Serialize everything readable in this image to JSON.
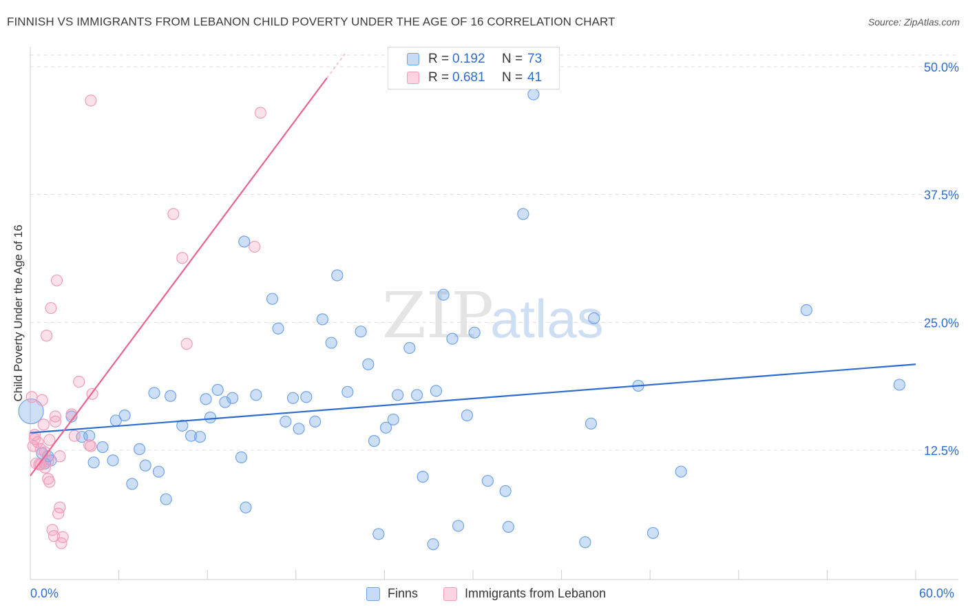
{
  "title": "FINNISH VS IMMIGRANTS FROM LEBANON CHILD POVERTY UNDER THE AGE OF 16 CORRELATION CHART",
  "source": "Source: ZipAtlas.com",
  "watermark": {
    "zip": "ZIP",
    "atlas": "atlas"
  },
  "legend": {
    "finns": {
      "r_label": "R =",
      "r_value": "0.192",
      "n_label": "N =",
      "n_value": "73"
    },
    "lebanon": {
      "r_label": "R =",
      "r_value": "0.681",
      "n_label": "N =",
      "n_value": "41"
    }
  },
  "chart_data": {
    "type": "scatter",
    "title": "FINNISH VS IMMIGRANTS FROM LEBANON CHILD POVERTY UNDER THE AGE OF 16 CORRELATION CHART",
    "xlabel": "",
    "ylabel": "Child Poverty Under the Age of 16",
    "xlim": [
      0,
      60
    ],
    "ylim": [
      0,
      52
    ],
    "x_tick_labels": [
      "0.0%",
      "60.0%"
    ],
    "y_tick_labels": [
      "12.5%",
      "25.0%",
      "37.5%",
      "50.0%"
    ],
    "y_ticks": [
      12.5,
      25.0,
      37.5,
      50.0
    ],
    "grid": true,
    "legend_position": "bottom",
    "colors": {
      "finns": "#6fa3e8",
      "finns_line": "#2d6ccf",
      "lebanon": "#f29bbb",
      "lebanon_line": "#e8648f",
      "text_blue": "#2d6ccf"
    },
    "series": [
      {
        "name": "Finns",
        "R": 0.192,
        "N": 73,
        "trend": {
          "x": [
            0,
            60
          ],
          "y": [
            14.2,
            20.9
          ]
        },
        "points": [
          [
            0.05,
            16.3
          ],
          [
            0.8,
            12.2
          ],
          [
            1.0,
            11.2
          ],
          [
            1.2,
            11.9
          ],
          [
            1.4,
            11.5
          ],
          [
            2.8,
            15.8
          ],
          [
            3.5,
            13.8
          ],
          [
            4.0,
            13.9
          ],
          [
            4.3,
            11.3
          ],
          [
            4.9,
            12.8
          ],
          [
            5.6,
            11.5
          ],
          [
            5.8,
            15.4
          ],
          [
            6.4,
            15.9
          ],
          [
            6.9,
            9.2
          ],
          [
            7.4,
            12.6
          ],
          [
            7.8,
            11.0
          ],
          [
            8.4,
            18.1
          ],
          [
            8.7,
            10.4
          ],
          [
            9.2,
            7.7
          ],
          [
            9.5,
            17.8
          ],
          [
            10.3,
            14.9
          ],
          [
            10.9,
            13.9
          ],
          [
            11.5,
            13.8
          ],
          [
            11.9,
            17.5
          ],
          [
            12.2,
            15.7
          ],
          [
            12.7,
            18.4
          ],
          [
            13.2,
            17.2
          ],
          [
            13.7,
            17.6
          ],
          [
            14.3,
            11.8
          ],
          [
            14.5,
            32.9
          ],
          [
            14.6,
            6.9
          ],
          [
            15.3,
            17.9
          ],
          [
            16.4,
            27.3
          ],
          [
            16.8,
            24.4
          ],
          [
            17.3,
            15.3
          ],
          [
            17.8,
            17.6
          ],
          [
            18.2,
            14.6
          ],
          [
            18.7,
            17.7
          ],
          [
            19.3,
            15.3
          ],
          [
            19.8,
            25.3
          ],
          [
            20.4,
            23.0
          ],
          [
            20.8,
            29.6
          ],
          [
            21.5,
            18.2
          ],
          [
            22.4,
            24.1
          ],
          [
            22.9,
            20.9
          ],
          [
            23.3,
            13.4
          ],
          [
            23.6,
            4.3
          ],
          [
            24.1,
            14.7
          ],
          [
            24.6,
            15.5
          ],
          [
            24.9,
            17.9
          ],
          [
            25.7,
            22.5
          ],
          [
            26.2,
            17.9
          ],
          [
            26.6,
            9.9
          ],
          [
            27.3,
            3.3
          ],
          [
            27.5,
            18.3
          ],
          [
            28.0,
            27.7
          ],
          [
            28.6,
            23.4
          ],
          [
            29.0,
            5.1
          ],
          [
            29.6,
            15.9
          ],
          [
            30.1,
            24.0
          ],
          [
            31.0,
            9.5
          ],
          [
            32.2,
            8.5
          ],
          [
            32.4,
            5.0
          ],
          [
            33.4,
            35.6
          ],
          [
            34.1,
            47.3
          ],
          [
            37.6,
            3.5
          ],
          [
            38.0,
            15.1
          ],
          [
            38.2,
            25.4
          ],
          [
            41.2,
            18.8
          ],
          [
            42.2,
            4.4
          ],
          [
            44.1,
            10.4
          ],
          [
            52.6,
            26.2
          ],
          [
            58.9,
            18.9
          ]
        ]
      },
      {
        "name": "Immigrants from Lebanon",
        "R": 0.681,
        "N": 41,
        "trend": {
          "x": [
            0,
            20.1
          ],
          "y": [
            10.0,
            48.9
          ]
        },
        "points": [
          [
            0.1,
            17.7
          ],
          [
            0.2,
            12.9
          ],
          [
            0.3,
            14.0
          ],
          [
            0.3,
            13.6
          ],
          [
            0.4,
            11.2
          ],
          [
            0.6,
            11.1
          ],
          [
            0.7,
            11.1
          ],
          [
            0.7,
            12.6
          ],
          [
            0.8,
            17.4
          ],
          [
            0.9,
            15.0
          ],
          [
            1.0,
            10.8
          ],
          [
            1.0,
            12.3
          ],
          [
            1.1,
            23.7
          ],
          [
            1.2,
            9.7
          ],
          [
            1.3,
            9.4
          ],
          [
            1.3,
            13.5
          ],
          [
            1.4,
            26.4
          ],
          [
            1.5,
            4.7
          ],
          [
            1.6,
            4.1
          ],
          [
            1.7,
            15.8
          ],
          [
            1.7,
            15.3
          ],
          [
            1.8,
            29.1
          ],
          [
            1.9,
            6.3
          ],
          [
            2.0,
            6.9
          ],
          [
            2.0,
            11.9
          ],
          [
            2.1,
            3.4
          ],
          [
            2.2,
            4.0
          ],
          [
            2.8,
            16.0
          ],
          [
            3.0,
            13.9
          ],
          [
            3.3,
            19.2
          ],
          [
            4.1,
            12.9
          ],
          [
            4.2,
            18.0
          ],
          [
            4.0,
            13.0
          ],
          [
            4.1,
            46.7
          ],
          [
            9.7,
            35.6
          ],
          [
            10.3,
            31.3
          ],
          [
            10.6,
            22.9
          ],
          [
            15.2,
            32.4
          ],
          [
            15.6,
            45.5
          ],
          [
            0.5,
            13.3
          ],
          [
            1.2,
            11.4
          ]
        ]
      }
    ]
  },
  "bottom_legend": {
    "finns": "Finns",
    "lebanon": "Immigrants from Lebanon"
  }
}
